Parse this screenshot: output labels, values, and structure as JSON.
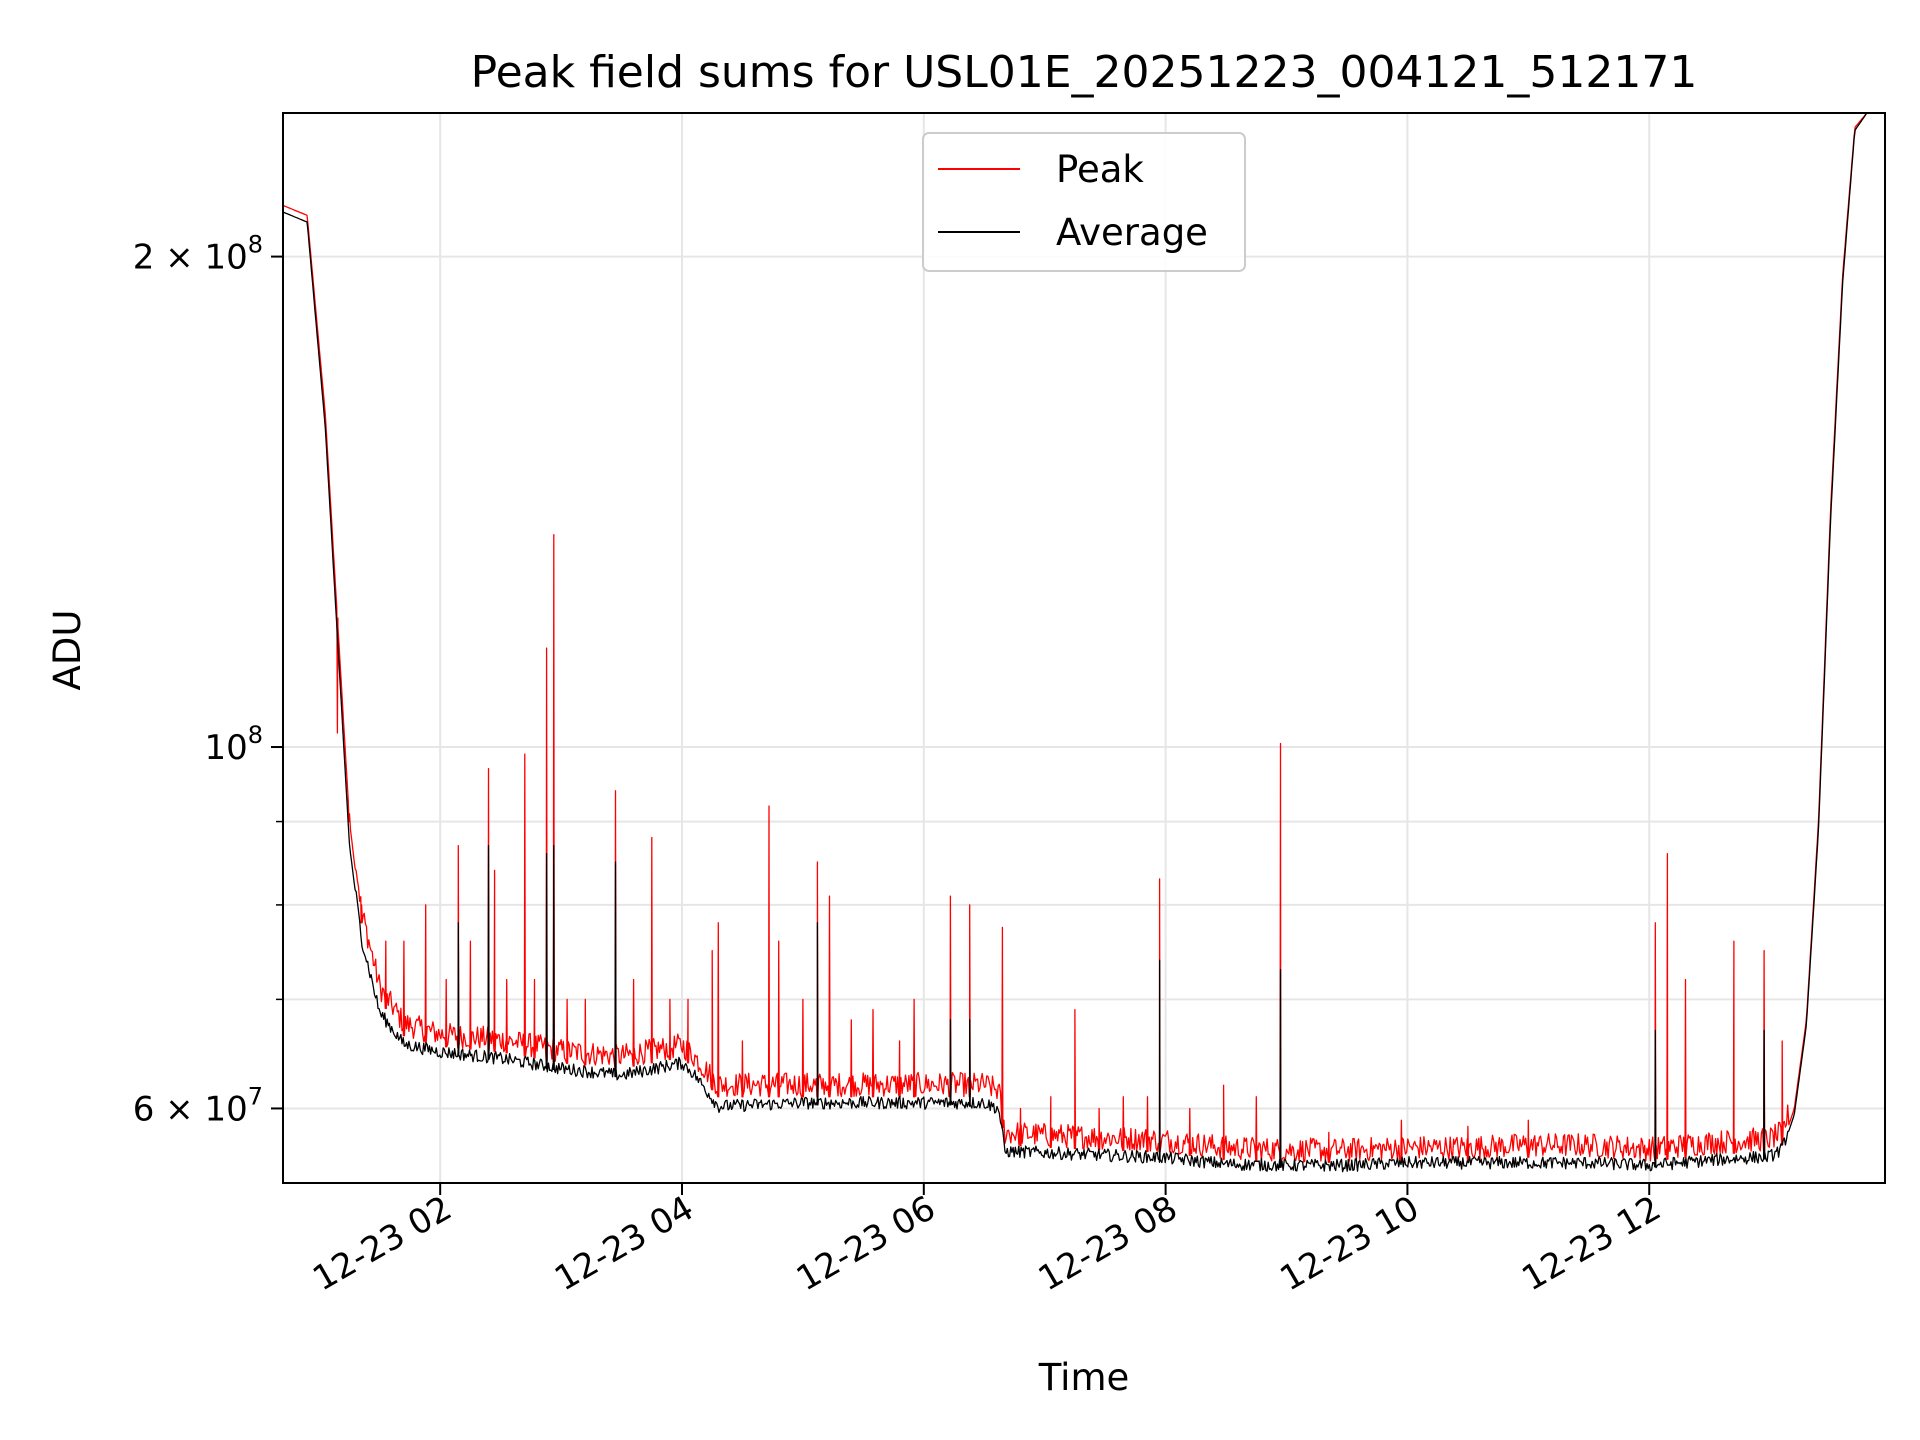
{
  "chart_data": {
    "type": "line",
    "title": "Peak field sums for USL01E_20251223_004121_512171",
    "xlabel": "Time",
    "ylabel": "ADU",
    "y_scale": "log",
    "ylim": [
      54000000,
      245000000
    ],
    "xlim_hours": [
      0.7,
      13.95
    ],
    "grid": true,
    "legend_position": "upper center",
    "x_ticks": [
      {
        "value": 2,
        "label": "12-23 02"
      },
      {
        "value": 4,
        "label": "12-23 04"
      },
      {
        "value": 6,
        "label": "12-23 06"
      },
      {
        "value": 8,
        "label": "12-23 08"
      },
      {
        "value": 10,
        "label": "12-23 10"
      },
      {
        "value": 12,
        "label": "12-23 12"
      }
    ],
    "y_ticks": [
      {
        "value": 60000000,
        "base": "6 × 10",
        "exp": "7"
      },
      {
        "value": 100000000,
        "base": "10",
        "exp": "8"
      },
      {
        "value": 200000000,
        "base": "2 × 10",
        "exp": "8"
      }
    ],
    "y_minor_ticks": [
      70000000,
      80000000,
      90000000
    ],
    "series": [
      {
        "name": "Peak",
        "color": "#ff0000",
        "baseline": [
          [
            0.7,
            215000000
          ],
          [
            0.9,
            212000000
          ],
          [
            1.05,
            160000000
          ],
          [
            1.15,
            120000000
          ],
          [
            1.25,
            90000000
          ],
          [
            1.35,
            78000000
          ],
          [
            1.5,
            70000000
          ],
          [
            1.7,
            66500000
          ],
          [
            2.0,
            65500000
          ],
          [
            2.5,
            65000000
          ],
          [
            3.0,
            64000000
          ],
          [
            3.5,
            63500000
          ],
          [
            4.0,
            64500000
          ],
          [
            4.1,
            63500000
          ],
          [
            4.3,
            61000000
          ],
          [
            5.0,
            61000000
          ],
          [
            5.5,
            61000000
          ],
          [
            6.0,
            61000000
          ],
          [
            6.5,
            61000000
          ],
          [
            6.62,
            60500000
          ],
          [
            6.67,
            57000000
          ],
          [
            7.0,
            56800000
          ],
          [
            7.5,
            56600000
          ],
          [
            8.0,
            56400000
          ],
          [
            8.5,
            55800000
          ],
          [
            9.0,
            55600000
          ],
          [
            9.5,
            55600000
          ],
          [
            10.0,
            55800000
          ],
          [
            10.5,
            55800000
          ],
          [
            11.0,
            56000000
          ],
          [
            11.5,
            56000000
          ],
          [
            12.0,
            55700000
          ],
          [
            12.5,
            56200000
          ],
          [
            13.0,
            56500000
          ],
          [
            13.1,
            57000000
          ],
          [
            13.2,
            60000000
          ],
          [
            13.3,
            68000000
          ],
          [
            13.4,
            90000000
          ],
          [
            13.5,
            140000000
          ],
          [
            13.6,
            195000000
          ],
          [
            13.7,
            240000000
          ],
          [
            13.8,
            245000000
          ],
          [
            13.95,
            245000000
          ]
        ],
        "spikes": [
          [
            1.15,
            102000000
          ],
          [
            1.25,
            91000000
          ],
          [
            1.35,
            80000000
          ],
          [
            1.55,
            76000000
          ],
          [
            1.7,
            76000000
          ],
          [
            1.88,
            80000000
          ],
          [
            2.05,
            72000000
          ],
          [
            2.15,
            87000000
          ],
          [
            2.25,
            76000000
          ],
          [
            2.4,
            97000000
          ],
          [
            2.45,
            84000000
          ],
          [
            2.55,
            72000000
          ],
          [
            2.7,
            99000000
          ],
          [
            2.78,
            72000000
          ],
          [
            2.88,
            115000000
          ],
          [
            2.94,
            135000000
          ],
          [
            3.05,
            70000000
          ],
          [
            3.2,
            70000000
          ],
          [
            3.45,
            94000000
          ],
          [
            3.6,
            72000000
          ],
          [
            3.75,
            88000000
          ],
          [
            3.9,
            70000000
          ],
          [
            4.05,
            70000000
          ],
          [
            4.25,
            75000000
          ],
          [
            4.3,
            78000000
          ],
          [
            4.5,
            66000000
          ],
          [
            4.72,
            92000000
          ],
          [
            4.8,
            76000000
          ],
          [
            5.0,
            70000000
          ],
          [
            5.12,
            85000000
          ],
          [
            5.22,
            81000000
          ],
          [
            5.4,
            68000000
          ],
          [
            5.58,
            69000000
          ],
          [
            5.8,
            66000000
          ],
          [
            5.92,
            70000000
          ],
          [
            6.22,
            81000000
          ],
          [
            6.38,
            80000000
          ],
          [
            6.65,
            77500000
          ],
          [
            6.8,
            60000000
          ],
          [
            7.05,
            61000000
          ],
          [
            7.25,
            69000000
          ],
          [
            7.45,
            60000000
          ],
          [
            7.65,
            61000000
          ],
          [
            7.85,
            61000000
          ],
          [
            7.95,
            83000000
          ],
          [
            8.2,
            60000000
          ],
          [
            8.48,
            62000000
          ],
          [
            8.75,
            61000000
          ],
          [
            8.95,
            100500000
          ],
          [
            9.35,
            58000000
          ],
          [
            9.95,
            59000000
          ],
          [
            10.5,
            58500000
          ],
          [
            11.0,
            59000000
          ],
          [
            12.05,
            78000000
          ],
          [
            12.15,
            86000000
          ],
          [
            12.3,
            72000000
          ],
          [
            12.7,
            76000000
          ],
          [
            12.95,
            75000000
          ],
          [
            13.1,
            66000000
          ]
        ]
      },
      {
        "name": "Average",
        "color": "#000000",
        "baseline": [
          [
            0.7,
            213000000
          ],
          [
            0.9,
            210000000
          ],
          [
            1.05,
            157000000
          ],
          [
            1.15,
            117000000
          ],
          [
            1.25,
            87000000
          ],
          [
            1.35,
            76000000
          ],
          [
            1.5,
            68500000
          ],
          [
            1.7,
            65500000
          ],
          [
            2.0,
            64800000
          ],
          [
            2.5,
            64200000
          ],
          [
            3.0,
            63300000
          ],
          [
            3.5,
            62700000
          ],
          [
            4.0,
            63800000
          ],
          [
            4.1,
            62800000
          ],
          [
            4.3,
            60000000
          ],
          [
            5.0,
            60300000
          ],
          [
            5.5,
            60300000
          ],
          [
            6.0,
            60300000
          ],
          [
            6.5,
            60300000
          ],
          [
            6.62,
            59800000
          ],
          [
            6.67,
            56300000
          ],
          [
            7.0,
            56200000
          ],
          [
            7.5,
            56000000
          ],
          [
            8.0,
            55800000
          ],
          [
            8.5,
            55300000
          ],
          [
            9.0,
            55200000
          ],
          [
            9.5,
            55200000
          ],
          [
            10.0,
            55400000
          ],
          [
            10.5,
            55400000
          ],
          [
            11.0,
            55400000
          ],
          [
            11.5,
            55400000
          ],
          [
            12.0,
            55200000
          ],
          [
            12.5,
            55600000
          ],
          [
            13.0,
            55900000
          ],
          [
            13.1,
            56500000
          ],
          [
            13.2,
            59500000
          ],
          [
            13.3,
            67500000
          ],
          [
            13.4,
            89000000
          ],
          [
            13.5,
            138000000
          ],
          [
            13.6,
            193000000
          ],
          [
            13.7,
            239000000
          ],
          [
            13.8,
            245000000
          ],
          [
            13.95,
            245000000
          ]
        ],
        "spikes": [
          [
            2.15,
            78000000
          ],
          [
            2.4,
            87000000
          ],
          [
            2.88,
            86000000
          ],
          [
            2.94,
            87000000
          ],
          [
            3.45,
            85000000
          ],
          [
            5.12,
            78000000
          ],
          [
            6.22,
            68000000
          ],
          [
            6.38,
            68000000
          ],
          [
            7.95,
            74000000
          ],
          [
            8.95,
            73000000
          ],
          [
            12.05,
            67000000
          ],
          [
            12.95,
            67000000
          ]
        ]
      }
    ]
  }
}
